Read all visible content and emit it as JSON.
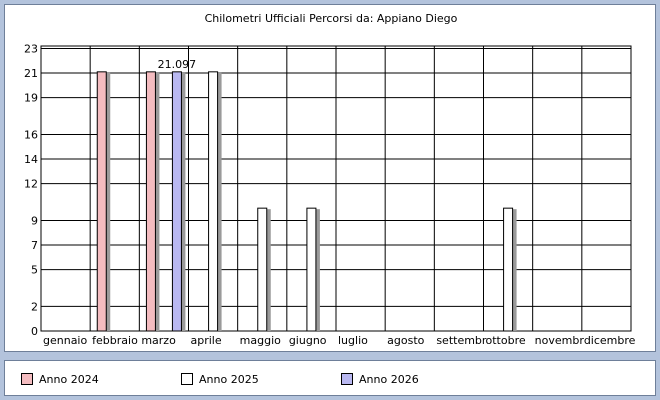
{
  "chart_data": {
    "type": "bar",
    "title": "Chilometri Ufficiali Percorsi da: Appiano Diego",
    "categories": [
      "gennaio",
      "febbraio",
      "marzo",
      "aprile",
      "maggio",
      "giugno",
      "luglio",
      "agosto",
      "settembr",
      "ottobre",
      "novembr",
      "dicembre"
    ],
    "y_ticks": [
      0,
      2,
      5,
      7,
      9,
      12,
      14,
      16,
      19,
      21,
      23
    ],
    "ylim": [
      0,
      23.2
    ],
    "grid": true,
    "legend_position": "bottom",
    "series": [
      {
        "name": "Anno 2024",
        "color": "#f4bcc0",
        "values": [
          0,
          21.097,
          21.097,
          0,
          0,
          0,
          0,
          0,
          0,
          0,
          0,
          0
        ]
      },
      {
        "name": "Anno 2025",
        "color": "#ffffff",
        "values": [
          0,
          0,
          0,
          21.097,
          10,
          10,
          0,
          0,
          0,
          10,
          0,
          0
        ]
      },
      {
        "name": "Anno 2026",
        "color": "#b9b8f1",
        "values": [
          0,
          0,
          21.097,
          0,
          0,
          0,
          0,
          0,
          0,
          0,
          0,
          0
        ]
      }
    ],
    "data_labels": [
      {
        "category": "marzo",
        "series": "Anno 2026",
        "text": "21.097"
      }
    ]
  },
  "legend": {
    "items": [
      {
        "label": "Anno 2024",
        "color": "#f4bcc0"
      },
      {
        "label": "Anno 2025",
        "color": "#ffffff"
      },
      {
        "label": "Anno 2026",
        "color": "#b9b8f1"
      }
    ]
  }
}
